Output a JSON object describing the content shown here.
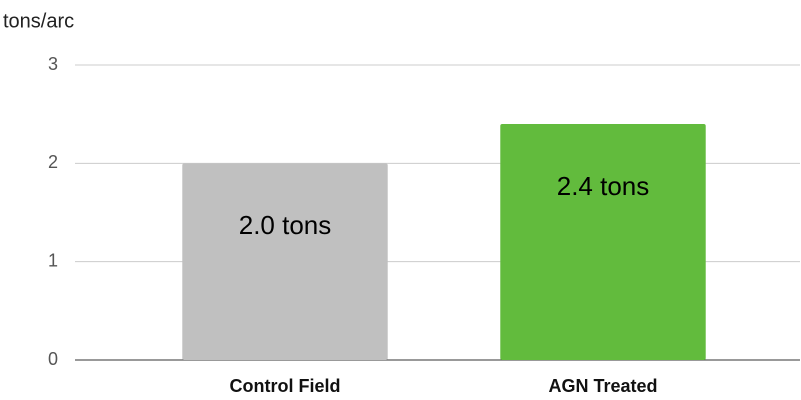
{
  "chart_data": {
    "type": "bar",
    "y_label": "tons/arc",
    "categories": [
      "Control Field",
      "AGN Treated"
    ],
    "values": [
      2.0,
      2.4
    ],
    "value_labels": [
      "2.0 tons",
      "2.4 tons"
    ],
    "colors": [
      "#c0c0c0",
      "#62bb3d"
    ],
    "ylim": [
      0,
      3
    ],
    "yticks": [
      0,
      1,
      2,
      3
    ],
    "grid": true
  }
}
